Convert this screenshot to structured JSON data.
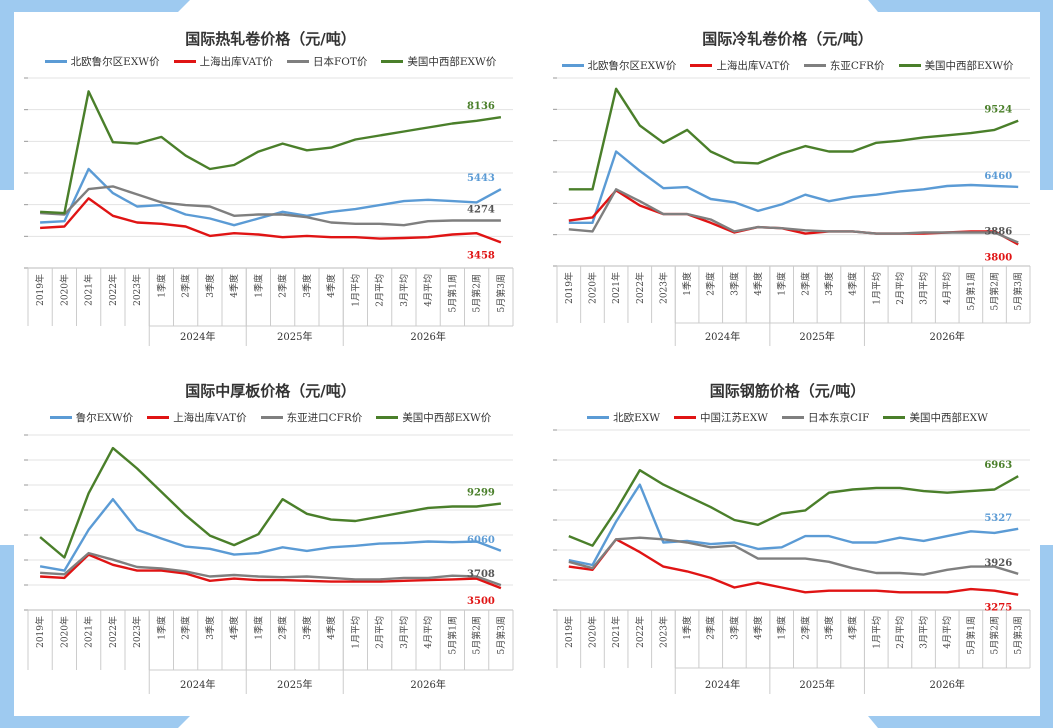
{
  "colors": {
    "frame": "#9ecaf0",
    "blue": "#5b9bd5",
    "red": "#e01414",
    "gray": "#7f7f7f",
    "green": "#4a7f2a",
    "grid": "#e3e3e3"
  },
  "x_categories": [
    "2019年",
    "2020年",
    "2021年",
    "2022年",
    "2023年",
    "1季度",
    "2季度",
    "3季度",
    "4季度",
    "1季度",
    "2季度",
    "3季度",
    "4季度",
    "1月平均",
    "2月平均",
    "3月平均",
    "4月平均",
    "5月第1周",
    "5月第2周",
    "5月第3周"
  ],
  "x_groups": [
    {
      "label": "2024年",
      "from": 5,
      "to": 8
    },
    {
      "label": "2025年",
      "from": 9,
      "to": 12
    },
    {
      "label": "2026年",
      "from": 13,
      "to": 19
    }
  ],
  "chart_data": [
    {
      "type": "line",
      "title": "国际热轧卷价格（元/吨）",
      "categories_ref": "x_categories",
      "ylim": [
        2500,
        9600
      ],
      "series": [
        {
          "name": "北欧鲁尔区EXW价",
          "color": "blue",
          "values": [
            4200,
            4250,
            6200,
            5300,
            4800,
            4850,
            4500,
            4350,
            4100,
            4350,
            4600,
            4450,
            4600,
            4700,
            4850,
            5000,
            5050,
            5000,
            4950,
            5443
          ],
          "end_label": "5443"
        },
        {
          "name": "上海出库VAT价",
          "color": "red",
          "values": [
            4000,
            4050,
            5100,
            4450,
            4200,
            4150,
            4050,
            3700,
            3800,
            3750,
            3650,
            3700,
            3650,
            3650,
            3600,
            3620,
            3650,
            3750,
            3800,
            3458
          ],
          "end_label": "3458"
        },
        {
          "name": "日本FOT价",
          "color": "gray",
          "values": [
            4550,
            4500,
            5450,
            5550,
            5250,
            4950,
            4850,
            4800,
            4450,
            4500,
            4500,
            4400,
            4200,
            4150,
            4150,
            4100,
            4250,
            4274,
            4274,
            4274
          ],
          "end_label": "4274"
        },
        {
          "name": "美国中西部EXW价",
          "color": "green",
          "values": [
            4600,
            4550,
            9100,
            7200,
            7150,
            7400,
            6700,
            6200,
            6350,
            6850,
            7150,
            6900,
            7000,
            7300,
            7450,
            7600,
            7750,
            7900,
            8000,
            8136
          ],
          "end_label": "8136"
        }
      ]
    },
    {
      "type": "line",
      "title": "国际冷轧卷价格（元/吨）",
      "categories_ref": "x_categories",
      "ylim": [
        2800,
        11500
      ],
      "series": [
        {
          "name": "北欧鲁尔区EXW价",
          "color": "blue",
          "values": [
            4800,
            4800,
            8100,
            7200,
            6400,
            6450,
            5900,
            5750,
            5350,
            5650,
            6100,
            5800,
            6000,
            6100,
            6250,
            6350,
            6500,
            6550,
            6500,
            6460
          ],
          "end_label": "6460"
        },
        {
          "name": "上海出库VAT价",
          "color": "red",
          "values": [
            4900,
            5050,
            6300,
            5600,
            5200,
            5200,
            4800,
            4350,
            4600,
            4550,
            4300,
            4400,
            4400,
            4300,
            4300,
            4300,
            4350,
            4400,
            4400,
            3800
          ],
          "end_label": "3800"
        },
        {
          "name": "东亚CFR价",
          "color": "gray",
          "values": [
            4500,
            4400,
            6350,
            5800,
            5200,
            5200,
            4950,
            4400,
            4600,
            4550,
            4450,
            4400,
            4400,
            4300,
            4300,
            4350,
            4350,
            4350,
            4350,
            3886
          ],
          "end_label": "3886"
        },
        {
          "name": "美国中西部EXW价",
          "color": "green",
          "values": [
            6350,
            6350,
            11000,
            9300,
            8500,
            9100,
            8100,
            7600,
            7550,
            8000,
            8350,
            8100,
            8100,
            8500,
            8600,
            8750,
            8850,
            8950,
            9100,
            9524
          ],
          "end_label": "9524"
        }
      ]
    },
    {
      "type": "line",
      "title": "国际中厚板价格（元/吨）",
      "categories_ref": "x_categories",
      "ylim": [
        2000,
        14000
      ],
      "series": [
        {
          "name": "鲁尔EXW价",
          "color": "blue",
          "values": [
            5000,
            4700,
            7500,
            9600,
            7500,
            6900,
            6350,
            6200,
            5800,
            5900,
            6300,
            6050,
            6300,
            6400,
            6550,
            6600,
            6700,
            6650,
            6700,
            6060
          ],
          "end_label": "6060"
        },
        {
          "name": "上海出库VAT价",
          "color": "red",
          "values": [
            4300,
            4200,
            5800,
            5100,
            4700,
            4700,
            4500,
            4000,
            4150,
            4050,
            4050,
            4000,
            3950,
            3950,
            3950,
            4000,
            4050,
            4100,
            4150,
            3500
          ],
          "end_label": "3500"
        },
        {
          "name": "东亚进口CFR价",
          "color": "gray",
          "values": [
            4550,
            4450,
            5900,
            5450,
            4950,
            4850,
            4650,
            4300,
            4400,
            4300,
            4250,
            4300,
            4200,
            4100,
            4100,
            4200,
            4200,
            4350,
            4300,
            3708
          ],
          "end_label": "3708"
        },
        {
          "name": "美国中西部EXW价",
          "color": "green",
          "values": [
            7000,
            5600,
            10000,
            13100,
            11700,
            10100,
            8500,
            7100,
            6450,
            7200,
            9600,
            8600,
            8200,
            8100,
            8400,
            8700,
            9000,
            9100,
            9100,
            9299
          ],
          "end_label": "9299"
        }
      ]
    },
    {
      "type": "line",
      "title": "国际钢筋价格（元/吨）",
      "categories_ref": "x_categories",
      "ylim": [
        2800,
        8400
      ],
      "series": [
        {
          "name": "北欧EXW",
          "color": "blue",
          "values": [
            4350,
            4200,
            5550,
            6700,
            4900,
            4950,
            4850,
            4900,
            4700,
            4750,
            5100,
            5100,
            4900,
            4900,
            5050,
            4950,
            5100,
            5250,
            5200,
            5327
          ],
          "end_label": "5327"
        },
        {
          "name": "中国江苏EXW",
          "color": "red",
          "values": [
            4150,
            4050,
            5000,
            4600,
            4150,
            4000,
            3800,
            3500,
            3650,
            3500,
            3350,
            3400,
            3400,
            3400,
            3350,
            3350,
            3350,
            3450,
            3400,
            3275
          ],
          "end_label": "3275"
        },
        {
          "name": "日本东京CIF",
          "color": "gray",
          "values": [
            4300,
            4100,
            5000,
            5050,
            5000,
            4900,
            4750,
            4800,
            4400,
            4400,
            4400,
            4300,
            4100,
            3950,
            3950,
            3900,
            4050,
            4150,
            4150,
            3926
          ],
          "end_label": "3926"
        },
        {
          "name": "美国中西部EXW",
          "color": "green",
          "values": [
            5100,
            4800,
            5900,
            7150,
            6700,
            6350,
            6000,
            5600,
            5450,
            5800,
            5900,
            6450,
            6550,
            6600,
            6600,
            6500,
            6450,
            6500,
            6550,
            6963
          ],
          "end_label": "6963"
        }
      ]
    }
  ]
}
